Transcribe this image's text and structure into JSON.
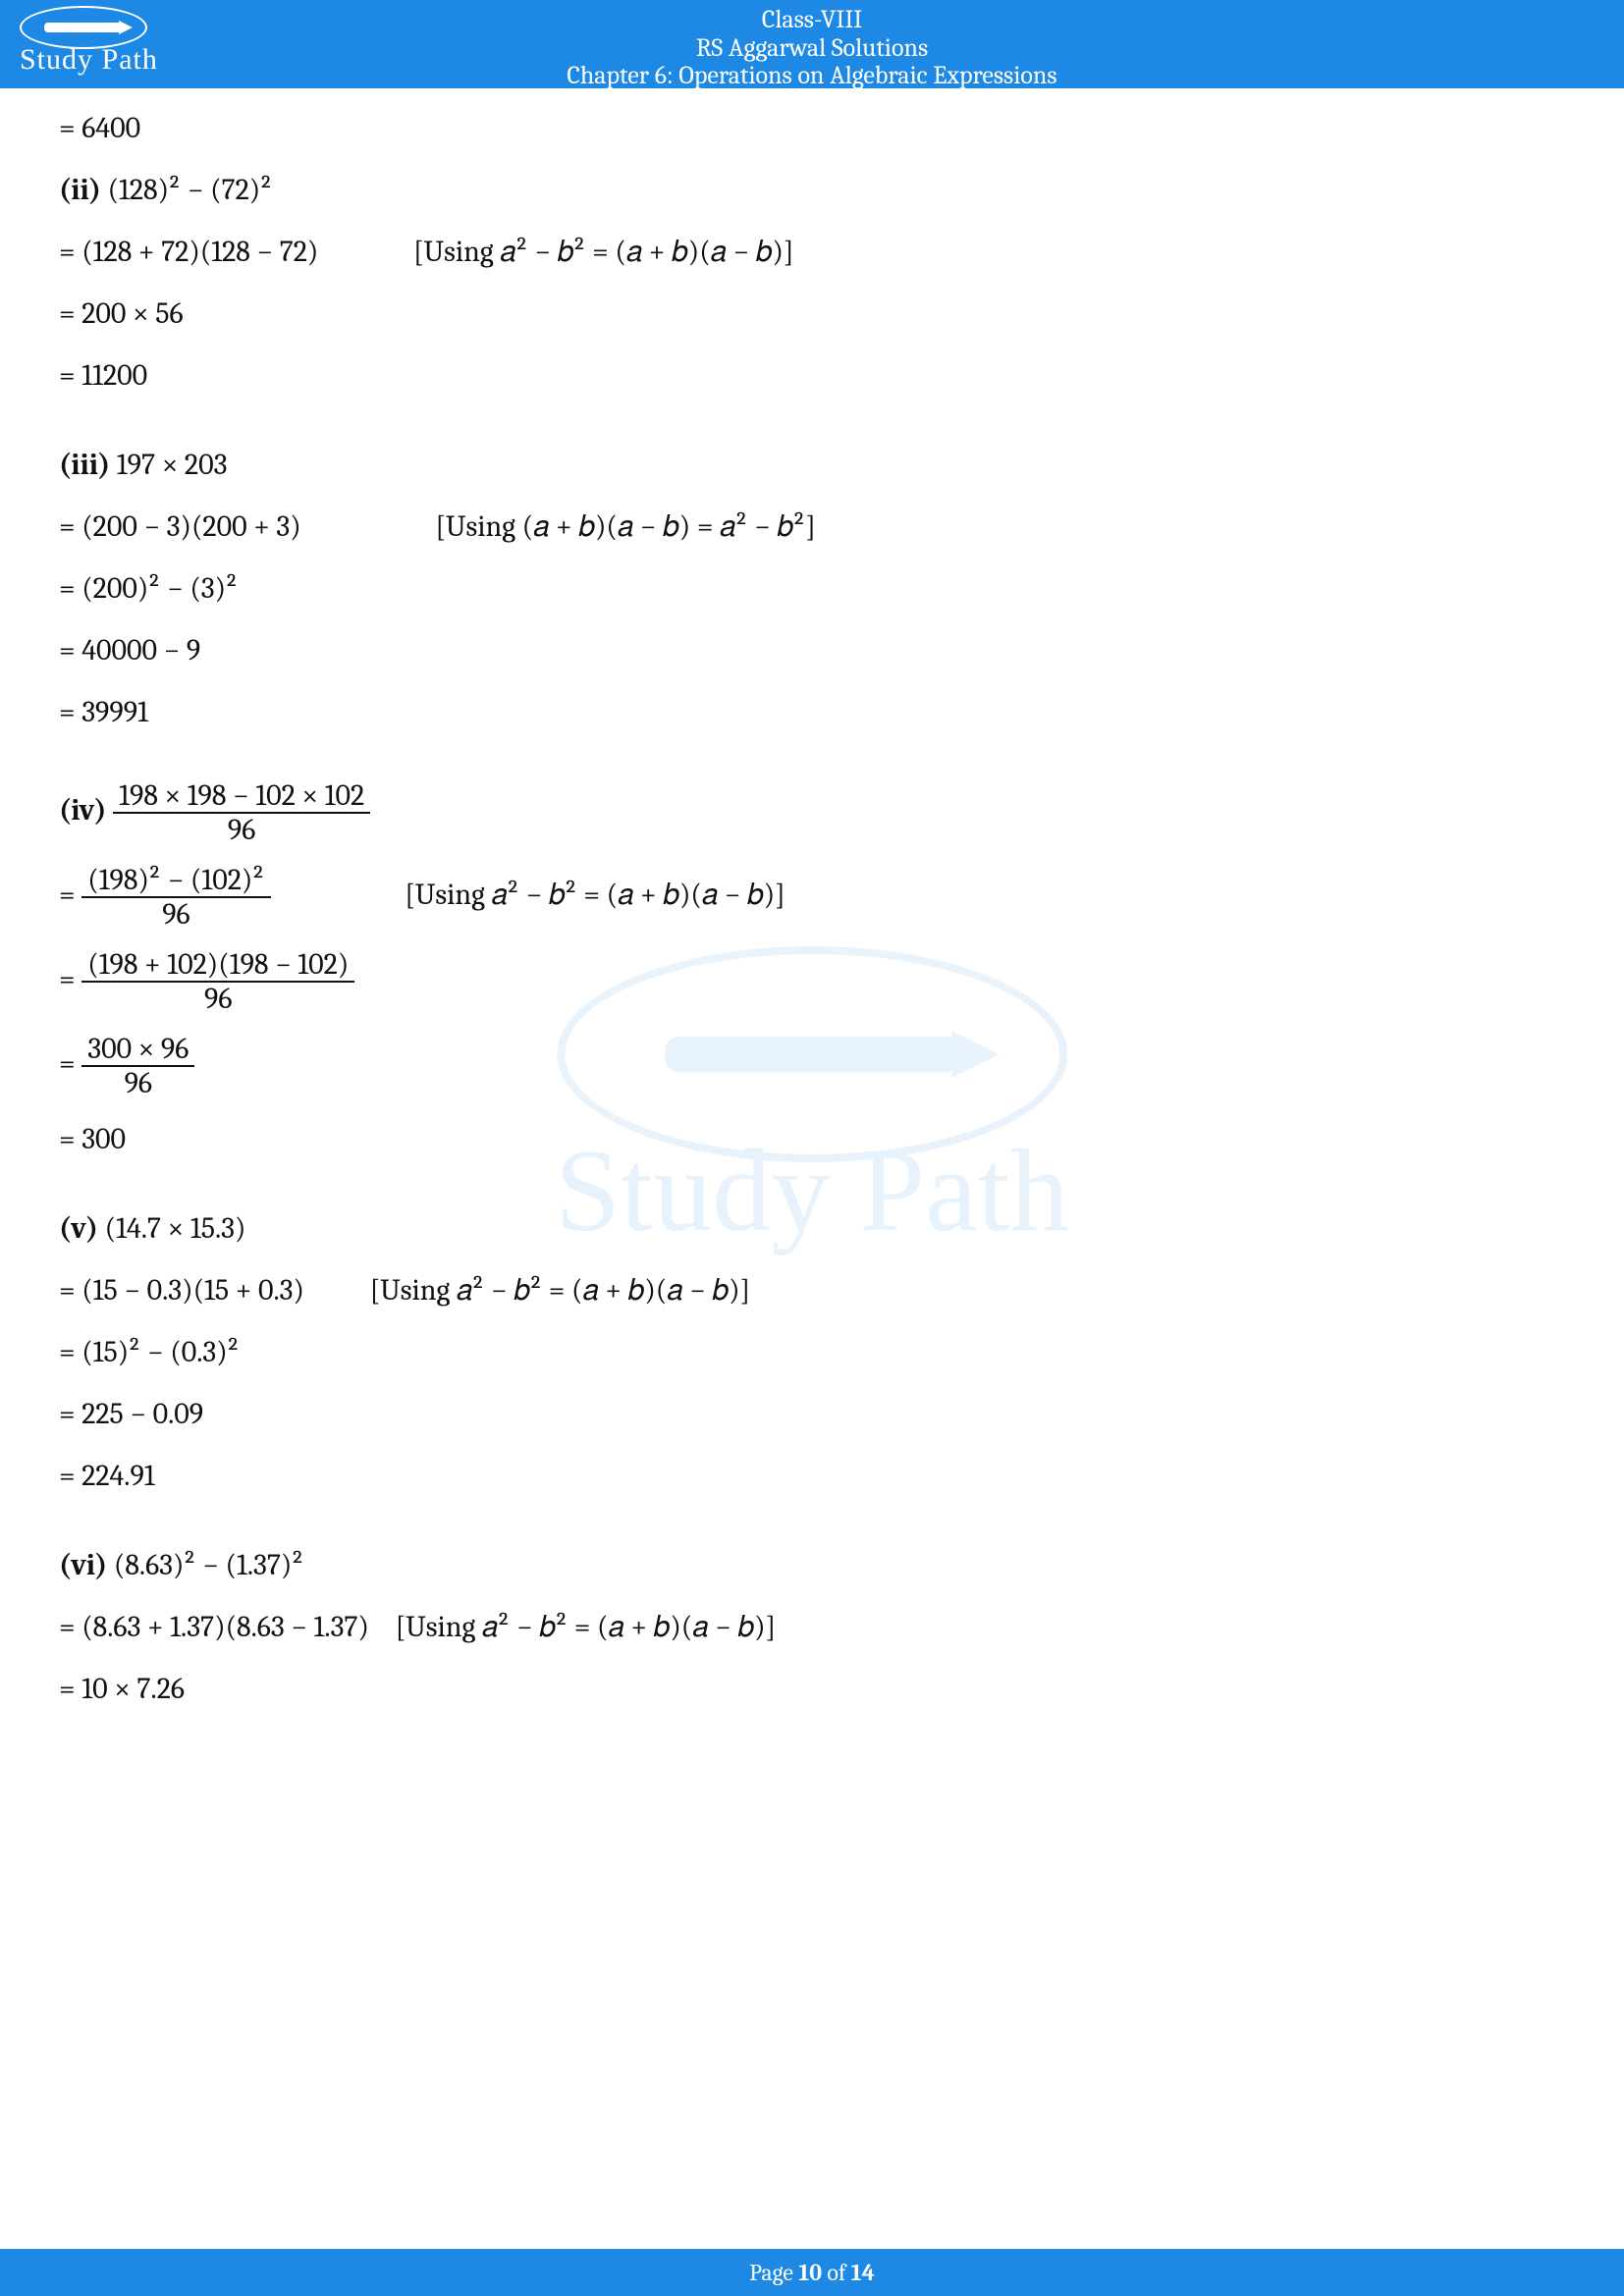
{
  "header": {
    "line1": "Class-VIII",
    "line2": "RS Aggarwal Solutions",
    "line3": "Chapter 6: Operations on Algebraic Expressions",
    "logo_text": "Study Path"
  },
  "watermark": {
    "text": "Study Path"
  },
  "footer": {
    "prefix": "Page ",
    "page": "10",
    "middle": " of ",
    "total": "14"
  },
  "sol": {
    "top1": "= 6400",
    "ii": {
      "label": "(ii)",
      "expr": " (128)² − (72)²",
      "s1a": "= (128 + 72)(128 − 72)",
      "hint": "[Using  𝑎² − 𝑏² = (𝑎 + 𝑏)(𝑎 − 𝑏)]",
      "s2": "= 200 × 56",
      "s3": "= 11200"
    },
    "iii": {
      "label": "(iii)",
      "expr": " 197 × 203",
      "s1a": "= (200 − 3)(200 + 3)",
      "hint": "[Using  (𝑎 + 𝑏)(𝑎 − 𝑏) = 𝑎² − 𝑏²]",
      "s2": "= (200)² − (3)²",
      "s3": "= 40000 − 9",
      "s4": "= 39991"
    },
    "iv": {
      "label": "(iv)",
      "frac1_num": "198 × 198 − 102 × 102",
      "frac1_den": "96",
      "eq": "= ",
      "frac2_num": "(198)² − (102)²",
      "frac2_den": "96",
      "hint": "[Using  𝑎² − 𝑏² = (𝑎 + 𝑏)(𝑎 − 𝑏)]",
      "frac3_num": "(198 + 102)(198 − 102)",
      "frac3_den": "96",
      "frac4_num": "300 × 96",
      "frac4_den": "96",
      "s5": "= 300"
    },
    "v": {
      "label": "(v)",
      "expr": " (14.7 × 15.3)",
      "s1a": "= (15 − 0.3)(15 + 0.3)",
      "hint": "[Using  𝑎² − 𝑏² = (𝑎 + 𝑏)(𝑎 − 𝑏)]",
      "s2": "= (15)² − (0.3)²",
      "s3": "= 225 − 0.09",
      "s4": "= 224.91"
    },
    "vi": {
      "label": "(vi)",
      "expr": " (8.63)² − (1.37)²",
      "s1a": "= (8.63 + 1.37)(8.63 − 1.37)",
      "hint": "[Using  𝑎² − 𝑏² = (𝑎 + 𝑏)(𝑎 − 𝑏)]",
      "s2": "= 10 × 7.26"
    }
  }
}
